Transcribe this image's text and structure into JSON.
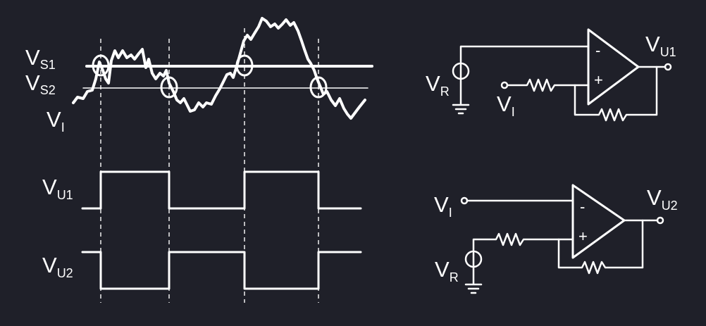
{
  "diagram": {
    "colors": {
      "background": "#1f2029",
      "foreground": "#ffffff"
    },
    "labels": {
      "vs1": {
        "main": "V",
        "sub": "S1"
      },
      "vs2": {
        "main": "V",
        "sub": "S2"
      },
      "vi": {
        "main": "V",
        "sub": "I"
      },
      "vu1": {
        "main": "V",
        "sub": "U1"
      },
      "vu2": {
        "main": "V",
        "sub": "U2"
      },
      "vr": {
        "main": "V",
        "sub": "R"
      },
      "opamp_minus": "-",
      "opamp_plus": "+"
    }
  }
}
